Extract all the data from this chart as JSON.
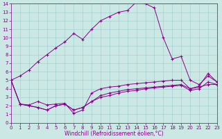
{
  "title": "",
  "xlabel": "Windchill (Refroidissement éolien,°C)",
  "xlim": [
    0,
    23
  ],
  "ylim": [
    0,
    14
  ],
  "xticks": [
    0,
    1,
    2,
    3,
    4,
    5,
    6,
    7,
    8,
    9,
    10,
    11,
    12,
    13,
    14,
    15,
    16,
    17,
    18,
    19,
    20,
    21,
    22,
    23
  ],
  "yticks": [
    0,
    1,
    2,
    3,
    4,
    5,
    6,
    7,
    8,
    9,
    10,
    11,
    12,
    13,
    14
  ],
  "bg_color": "#cce8e4",
  "line_color": "#880088",
  "grid_color": "#99cccc",
  "series1": {
    "x": [
      0,
      1,
      2,
      3,
      4,
      5,
      6,
      7,
      8,
      9,
      10,
      11,
      12,
      13,
      14,
      15,
      16,
      17,
      18,
      19,
      20,
      21,
      22,
      23
    ],
    "y": [
      5,
      5.5,
      6.2,
      7.2,
      8.0,
      8.8,
      9.5,
      10.5,
      9.8,
      11.0,
      12.0,
      12.5,
      13.0,
      13.2,
      14.2,
      14.0,
      13.5,
      10.0,
      7.5,
      7.8,
      5.0,
      4.5,
      5.5,
      4.8
    ]
  },
  "series2": {
    "x": [
      0,
      1,
      2,
      3,
      4,
      5,
      6,
      7,
      8,
      9,
      10,
      11,
      12,
      13,
      14,
      15,
      16,
      17,
      18,
      19,
      20,
      21,
      22,
      23
    ],
    "y": [
      5,
      2.2,
      2.1,
      2.5,
      2.1,
      2.2,
      2.3,
      1.1,
      1.5,
      3.5,
      4.0,
      4.2,
      4.3,
      4.5,
      4.6,
      4.7,
      4.8,
      4.9,
      5.0,
      5.0,
      4.0,
      4.3,
      5.8,
      4.8
    ]
  },
  "series3": {
    "x": [
      0,
      1,
      2,
      3,
      4,
      5,
      6,
      7,
      8,
      9,
      10,
      11,
      12,
      13,
      14,
      15,
      16,
      17,
      18,
      19,
      20,
      21,
      22,
      23
    ],
    "y": [
      5,
      2.2,
      2.0,
      1.8,
      1.5,
      2.0,
      2.2,
      1.5,
      1.8,
      2.5,
      3.0,
      3.2,
      3.5,
      3.7,
      3.8,
      4.0,
      4.1,
      4.2,
      4.3,
      4.4,
      3.8,
      4.0,
      4.8,
      4.5
    ]
  },
  "series4": {
    "x": [
      0,
      1,
      2,
      3,
      4,
      5,
      6,
      7,
      8,
      9,
      10,
      11,
      12,
      13,
      14,
      15,
      16,
      17,
      18,
      19,
      20,
      21,
      22,
      23
    ],
    "y": [
      5,
      2.2,
      2.0,
      1.8,
      1.5,
      2.0,
      2.2,
      1.5,
      1.8,
      2.5,
      3.2,
      3.5,
      3.7,
      3.9,
      4.0,
      4.1,
      4.2,
      4.3,
      4.4,
      4.5,
      4.0,
      4.2,
      4.5,
      4.5
    ]
  },
  "tick_fontsize": 5,
  "xlabel_fontsize": 5.5
}
